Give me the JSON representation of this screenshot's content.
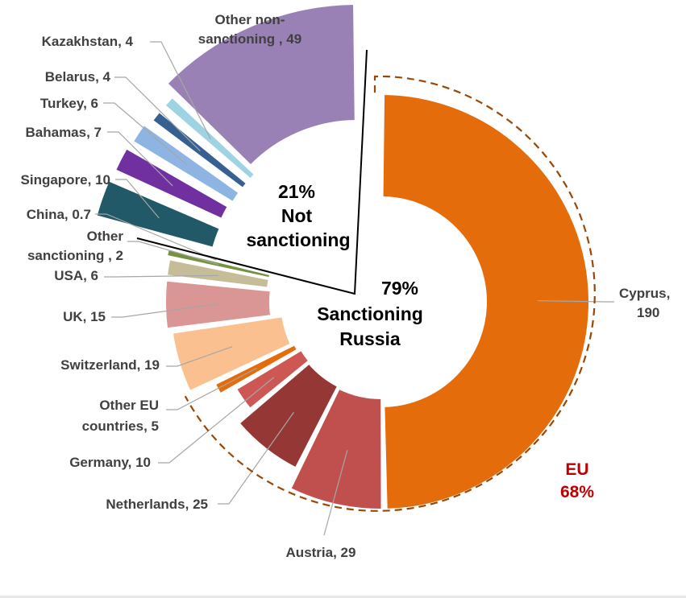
{
  "chart_data": {
    "type": "donut",
    "title": "",
    "series": [
      {
        "label": "Cyprus, 190",
        "value": 190,
        "color": "#E46C0A",
        "group": "sanctioning"
      },
      {
        "label": "Austria, 29",
        "value": 29,
        "color": "#C0504D",
        "group": "sanctioning"
      },
      {
        "label": "Netherlands, 25",
        "value": 25,
        "color": "#953735",
        "group": "sanctioning"
      },
      {
        "label": "Germany, 10",
        "value": 10,
        "color": "#CD5752",
        "group": "sanctioning"
      },
      {
        "label": "Other EU countries, 5",
        "value": 5,
        "color": "#E46C0A",
        "group": "sanctioning"
      },
      {
        "label": "Switzerland, 19",
        "value": 19,
        "color": "#FAC090",
        "group": "sanctioning"
      },
      {
        "label": "UK, 15",
        "value": 15,
        "color": "#D99694",
        "group": "sanctioning"
      },
      {
        "label": "USA, 6",
        "value": 6,
        "color": "#C4BD97",
        "group": "sanctioning"
      },
      {
        "label": "Other sanctioning , 2",
        "value": 2,
        "color": "#76923C",
        "group": "sanctioning"
      },
      {
        "label": "China, 0.7",
        "value": 0.7,
        "color": "#8EA9DB",
        "group": "non-sanctioning"
      },
      {
        "label": "Singapore, 10",
        "value": 10,
        "color": "#215968",
        "group": "non-sanctioning"
      },
      {
        "label": "Bahamas, 7",
        "value": 7,
        "color": "#7030A0",
        "group": "non-sanctioning"
      },
      {
        "label": "Turkey, 6",
        "value": 6,
        "color": "#8DB4E2",
        "group": "non-sanctioning"
      },
      {
        "label": "Belarus, 4",
        "value": 4,
        "color": "#376092",
        "group": "non-sanctioning"
      },
      {
        "label": "Kazakhstan, 4",
        "value": 4,
        "color": "#9DD3E3",
        "group": "non-sanctioning"
      },
      {
        "label": "Other non-sanctioning , 49",
        "value": 49,
        "color": "#9A81B5",
        "group": "non-sanctioning"
      }
    ],
    "center_labels": {
      "not_sanctioning_pct": "21%",
      "not_sanctioning_line1": "Not",
      "not_sanctioning_line2": "sanctioning",
      "sanctioning_pct": "79%",
      "sanctioning_line1": "Sanctioning",
      "sanctioning_line2": "Russia"
    },
    "eu_label": {
      "line1": "EU",
      "line2": "68%",
      "color": "#C00000"
    },
    "legend": "none"
  }
}
